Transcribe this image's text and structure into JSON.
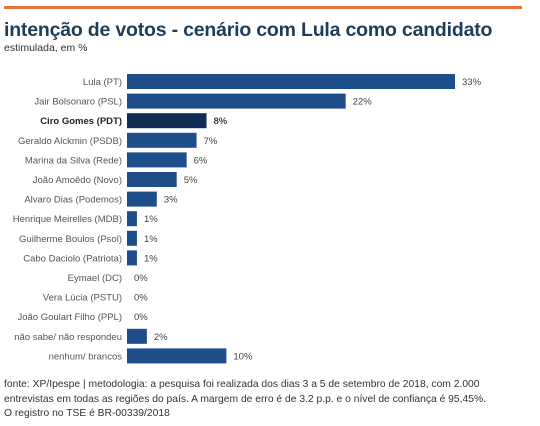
{
  "header": {
    "title": "intenção de votos - cenário com Lula como candidato",
    "subtitle": "estimulada, em %"
  },
  "colors": {
    "accent_line": "#e8743b",
    "title": "#1e3d59",
    "bar": "#1d4e89",
    "bar_highlight": "#0f2d55"
  },
  "chart_data": {
    "type": "bar",
    "orientation": "horizontal",
    "categories": [
      "Lula (PT)",
      "Jair Bolsonaro (PSL)",
      "Ciro Gomes (PDT)",
      "Geraldo Alckmin (PSDB)",
      "Marina da Silva (Rede)",
      "João Amoêdo (Novo)",
      "Alvaro Dias (Podemos)",
      "Henrique Meirelles (MDB)",
      "Guilherme Boulos (Psol)",
      "Cabo Daciolo (Patriota)",
      "Eymael (DC)",
      "Vera Lúcia (PSTU)",
      "João Goulart Filho (PPL)",
      "não sabe/ não respondeu",
      "nenhum/ brancos"
    ],
    "values": [
      33,
      22,
      8,
      7,
      6,
      5,
      3,
      1,
      1,
      1,
      0,
      0,
      0,
      2,
      10
    ],
    "data_labels": [
      "33%",
      "22%",
      "8%",
      "7%",
      "6%",
      "5%",
      "3%",
      "1%",
      "1%",
      "1%",
      "0%",
      "0%",
      "0%",
      "2%",
      "10%"
    ],
    "highlighted_category": "Ciro Gomes (PDT)",
    "xlim": [
      0,
      33
    ],
    "grid": false,
    "legend": "none"
  },
  "footer": {
    "line1": "fonte: XP/Ipespe | metodologia: a pesquisa foi realizada dos dias 3 a 5 de setembro de 2018, com 2.000",
    "line2": "entrevistas em todas as regiões do país. A margem de erro é de 3.2 p.p. e o nível de confiança é 95,45%.",
    "line3": "O registro no TSE é BR-00339/2018"
  }
}
